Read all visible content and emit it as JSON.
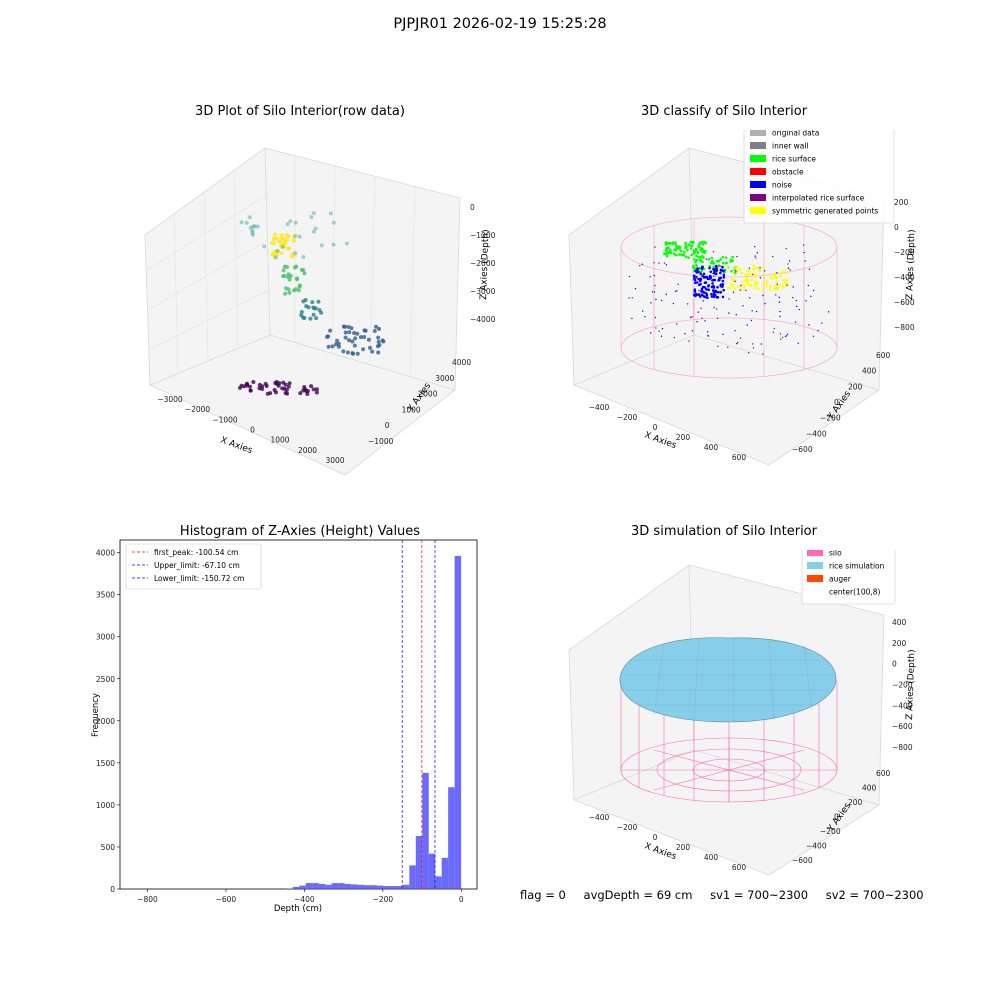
{
  "suptitle": "PJPJR01 2026-02-19 15:25:28",
  "colors": {
    "hist_bar": "#5050ff",
    "peak_line": "#ff0000",
    "limit_line": "#0000ff",
    "silo": "#ff69b4",
    "rice_simulation": "#87ceeb",
    "auger": "#ff4500",
    "original": "#b0b0b0",
    "inner_wall": "#808080",
    "rice_surface": "#00ff00",
    "obstacle": "#ff0000",
    "noise": "#0000ff",
    "interpolated": "#800080",
    "symmetric": "#ffff00"
  },
  "panels": {
    "raw": {
      "title": "3D Plot of Silo Interior(row data)",
      "xlabel": "X Axies",
      "ylabel": "Y Axies",
      "zlabel": "Z Axies (Depth)",
      "x_ticks": [
        "−3000",
        "−2000",
        "−1000",
        "0",
        "1000",
        "2000",
        "3000"
      ],
      "y_ticks": [
        "−1000",
        "0",
        "1000",
        "2000",
        "3000",
        "4000"
      ],
      "z_ticks": [
        "0",
        "−1000",
        "−2000",
        "−3000",
        "−4000"
      ]
    },
    "classify": {
      "title": "3D classify of Silo Interior",
      "xlabel": "X Axies",
      "ylabel": "Y Axies",
      "zlabel": "Z Axies (Depth)",
      "x_ticks": [
        "−400",
        "−200",
        "0",
        "200",
        "400",
        "600"
      ],
      "y_ticks": [
        "−600",
        "−400",
        "−200",
        "0",
        "200",
        "400",
        "600"
      ],
      "z_ticks": [
        "200",
        "0",
        "−200",
        "−400",
        "−600",
        "−800"
      ],
      "legend": [
        {
          "label": "original data",
          "color": "#b0b0b0"
        },
        {
          "label": "inner wall",
          "color": "#808080"
        },
        {
          "label": "rice surface",
          "color": "#00ff00"
        },
        {
          "label": "obstacle",
          "color": "#ff0000"
        },
        {
          "label": "noise",
          "color": "#0000ff"
        },
        {
          "label": "interpolated rice surface",
          "color": "#800080"
        },
        {
          "label": "symmetric generated points",
          "color": "#ffff00"
        }
      ]
    },
    "simulation": {
      "title": "3D simulation of Silo Interior",
      "xlabel": "X Axies",
      "ylabel": "Y Axies",
      "zlabel": "Z Axies (Depth)",
      "x_ticks": [
        "−400",
        "−200",
        "0",
        "200",
        "400",
        "600"
      ],
      "y_ticks": [
        "−600",
        "−400",
        "−200",
        "0",
        "200",
        "400",
        "600"
      ],
      "z_ticks": [
        "400",
        "200",
        "0",
        "−200",
        "−400",
        "−600",
        "−800"
      ],
      "legend": [
        {
          "label": "silo",
          "color": "#ff69b4"
        },
        {
          "label": "rice simulation",
          "color": "#87ceeb"
        },
        {
          "label": "auger",
          "color": "#ff4500"
        },
        {
          "label": "center(100,8)",
          "color": ""
        }
      ]
    }
  },
  "status": {
    "flag": "flag = 0",
    "avg_depth": "avgDepth = 69 cm",
    "sv1": "sv1 = 700~2300",
    "sv2": "sv2 = 700~2300"
  },
  "chart_data": [
    {
      "type": "scatter",
      "title": "3D Plot of Silo Interior(row data)",
      "xlabel": "X Axies",
      "ylabel": "Y Axies",
      "zlabel": "Z Axies (Depth)",
      "xlim": [
        -3000,
        3000
      ],
      "ylim": [
        -1000,
        4000
      ],
      "zlim": [
        -4000,
        0
      ],
      "grid": true
    },
    {
      "type": "scatter",
      "title": "3D classify of Silo Interior",
      "xlabel": "X Axies",
      "ylabel": "Y Axies",
      "zlabel": "Z Axies (Depth)",
      "xlim": [
        -400,
        600
      ],
      "ylim": [
        -600,
        600
      ],
      "zlim": [
        -800,
        200
      ],
      "legend_position": "top-right",
      "grid": true
    },
    {
      "type": "bar",
      "title": "Histogram of Z-Axies (Height) Values",
      "xlabel": "Depth (cm)",
      "ylabel": "Frequency",
      "xlim": [
        -870,
        40
      ],
      "ylim": [
        0,
        4150
      ],
      "x_ticks": [
        "−800",
        "−600",
        "−400",
        "−200",
        "0"
      ],
      "y_ticks": [
        "0",
        "500",
        "1000",
        "1500",
        "2000",
        "2500",
        "3000",
        "3500",
        "4000"
      ],
      "bin_width": 16.5,
      "bins": [
        {
          "x": -446,
          "value": 5
        },
        {
          "x": -429.5,
          "value": 25
        },
        {
          "x": -413,
          "value": 40
        },
        {
          "x": -396.5,
          "value": 70
        },
        {
          "x": -380,
          "value": 70
        },
        {
          "x": -363.5,
          "value": 60
        },
        {
          "x": -347,
          "value": 50
        },
        {
          "x": -330.5,
          "value": 70
        },
        {
          "x": -314,
          "value": 70
        },
        {
          "x": -297.5,
          "value": 60
        },
        {
          "x": -281,
          "value": 55
        },
        {
          "x": -264.5,
          "value": 50
        },
        {
          "x": -248,
          "value": 45
        },
        {
          "x": -231.5,
          "value": 45
        },
        {
          "x": -215,
          "value": 40
        },
        {
          "x": -198.5,
          "value": 35
        },
        {
          "x": -182,
          "value": 35
        },
        {
          "x": -165.5,
          "value": 35
        },
        {
          "x": -149,
          "value": 50
        },
        {
          "x": -132.5,
          "value": 280
        },
        {
          "x": -116,
          "value": 630
        },
        {
          "x": -99.5,
          "value": 1380
        },
        {
          "x": -83,
          "value": 420
        },
        {
          "x": -66.5,
          "value": 150
        },
        {
          "x": -50,
          "value": 370
        },
        {
          "x": -33.5,
          "value": 1210
        },
        {
          "x": -17,
          "value": 3960
        }
      ],
      "lines": [
        {
          "label": "first_peak: -100.54 cm",
          "x": -100.54,
          "color": "#ff0000"
        },
        {
          "label": "Upper_limit: -67.10 cm",
          "x": -67.1,
          "color": "#0000ff"
        },
        {
          "label": "Lower_limit: -150.72 cm",
          "x": -150.72,
          "color": "#0000ff"
        }
      ],
      "legend_position": "top-left"
    },
    {
      "type": "surface",
      "title": "3D simulation of Silo Interior",
      "xlabel": "X Axies",
      "ylabel": "Y Axies",
      "zlabel": "Z Axies (Depth)",
      "xlim": [
        -400,
        600
      ],
      "ylim": [
        -600,
        600
      ],
      "zlim": [
        -800,
        400
      ],
      "legend_position": "top-right",
      "grid": true
    }
  ]
}
